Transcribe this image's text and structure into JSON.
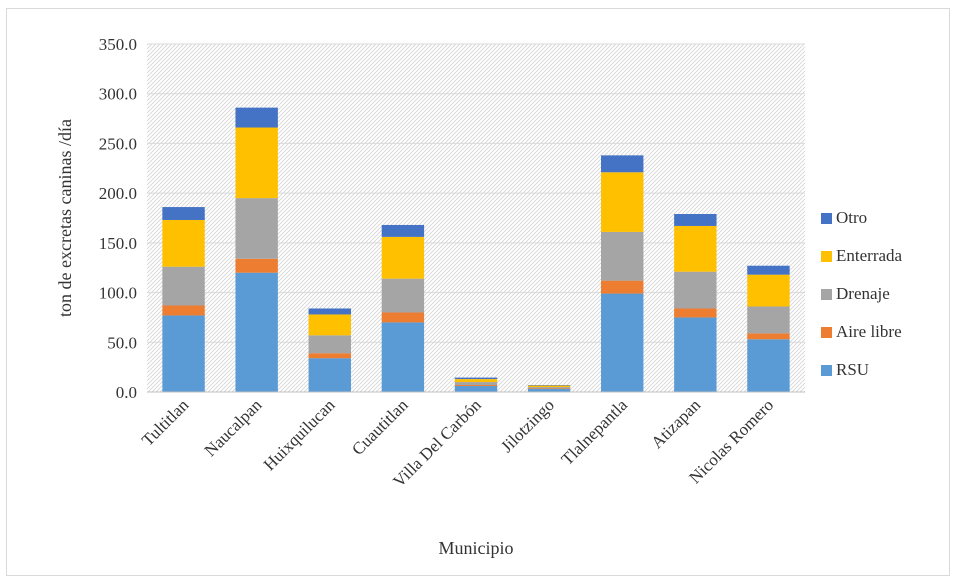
{
  "chart_data": {
    "type": "bar",
    "stacked": true,
    "title": "",
    "xlabel": "Municipio",
    "ylabel": "ton de excretas caninas /día",
    "ylim": [
      0,
      350
    ],
    "ytick_step": 50,
    "ytick_format_decimals": 1,
    "grid": true,
    "legend_position": "right",
    "categories": [
      "Tultitlan",
      "Naucalpan",
      "Huixquilucan",
      "Cuautitlan",
      "Villa Del Carbón",
      "Jilotzingo",
      "Tlalnepantla",
      "Atizapan",
      "Nicolas Romero"
    ],
    "series": [
      {
        "name": "RSU",
        "color": "#5b9bd5",
        "values": [
          77,
          120,
          34,
          70,
          6,
          3,
          99,
          75,
          53
        ]
      },
      {
        "name": "Aire libre",
        "color": "#ed7d31",
        "values": [
          10,
          14,
          5,
          10,
          1,
          0.5,
          13,
          9,
          6
        ]
      },
      {
        "name": "Drenaje",
        "color": "#a5a5a5",
        "values": [
          39,
          61,
          18,
          34,
          3,
          1.5,
          49,
          37,
          27
        ]
      },
      {
        "name": "Enterrada",
        "color": "#ffc000",
        "values": [
          47,
          71,
          21,
          42,
          3,
          1.5,
          60,
          46,
          32
        ]
      },
      {
        "name": "Otro",
        "color": "#4472c4",
        "values": [
          13,
          20,
          6,
          12,
          1.5,
          0.5,
          17,
          12,
          9
        ]
      }
    ]
  }
}
